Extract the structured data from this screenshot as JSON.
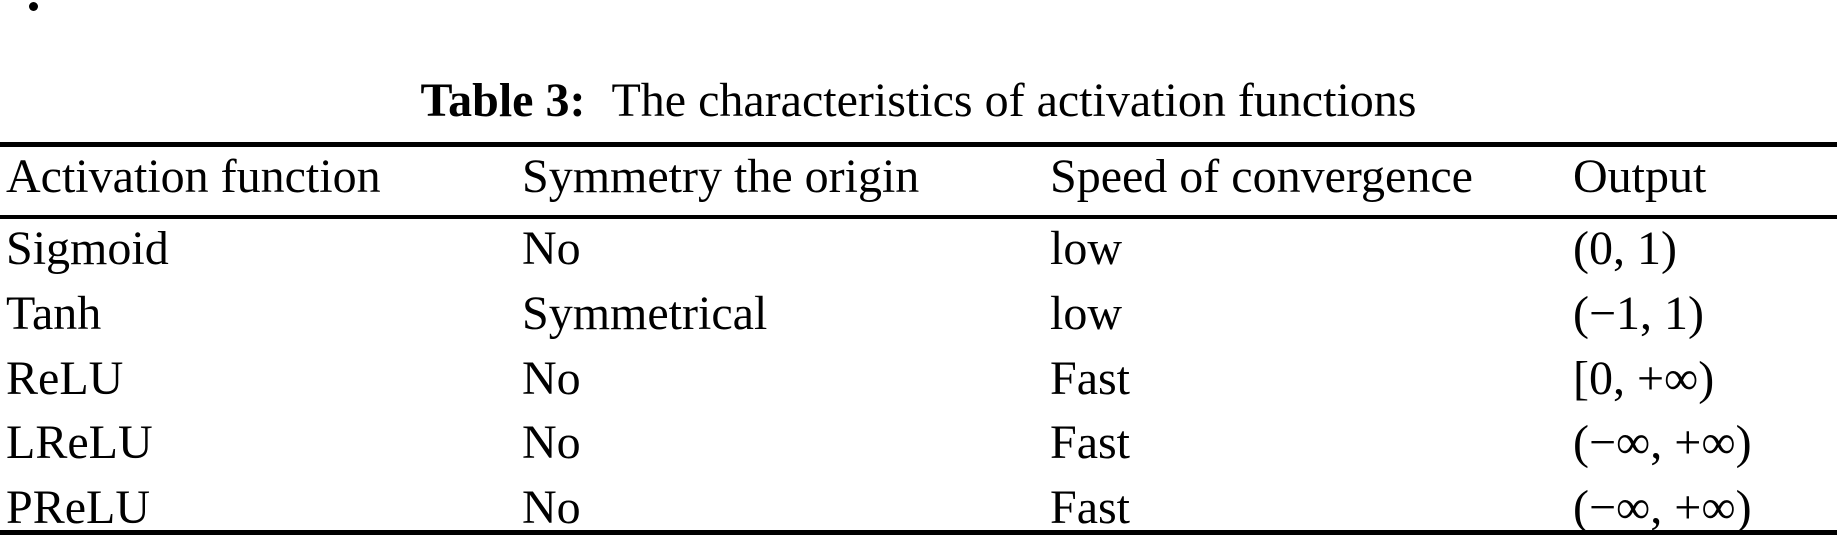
{
  "caption": {
    "label": "Table 3:",
    "text": "The characteristics of activation functions"
  },
  "table": {
    "columns": [
      "Activation function",
      "Symmetry the origin",
      "Speed of convergence",
      "Output"
    ],
    "rows": [
      [
        "Sigmoid",
        "No",
        "low",
        "(0, 1)"
      ],
      [
        "Tanh",
        "Symmetrical",
        "low",
        "(−1, 1)"
      ],
      [
        "ReLU",
        "No",
        "Fast",
        "[0, +∞)"
      ],
      [
        "LReLU",
        "No",
        "Fast",
        "(−∞, +∞)"
      ],
      [
        "PReLU",
        "No",
        "Fast",
        "(−∞, +∞)"
      ]
    ]
  },
  "colors": {
    "background": "#ffffff",
    "text": "#000000",
    "rule": "#000000"
  }
}
